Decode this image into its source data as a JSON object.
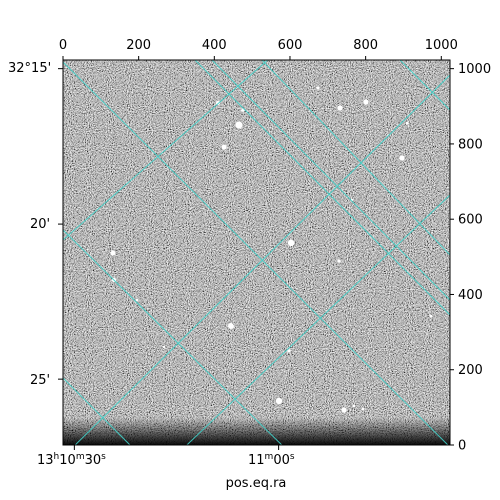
{
  "chart_data": {
    "type": "image",
    "title": "",
    "xlabel": "pos.eq.ra",
    "ylabel": "",
    "pixel_axes": {
      "x_range": [
        0,
        1023
      ],
      "y_range": [
        0,
        1023
      ],
      "x_ticks": [
        0,
        200,
        400,
        600,
        800,
        1000
      ],
      "y_ticks": [
        0,
        200,
        400,
        600,
        800,
        1000
      ]
    },
    "ra_ticks": [
      {
        "x": 30,
        "h": "13",
        "m": "10",
        "s": "30"
      },
      {
        "x": 570,
        "h": "",
        "m": "11",
        "s": "00"
      }
    ],
    "dec_ticks": [
      {
        "y": 1000,
        "label": "32°15'"
      },
      {
        "y": 587,
        "label": "20'"
      },
      {
        "y": 175,
        "label": "25'"
      }
    ],
    "grid": true,
    "grid_color": "#40d0c8",
    "image_style": "grayscale noise with point sources"
  }
}
